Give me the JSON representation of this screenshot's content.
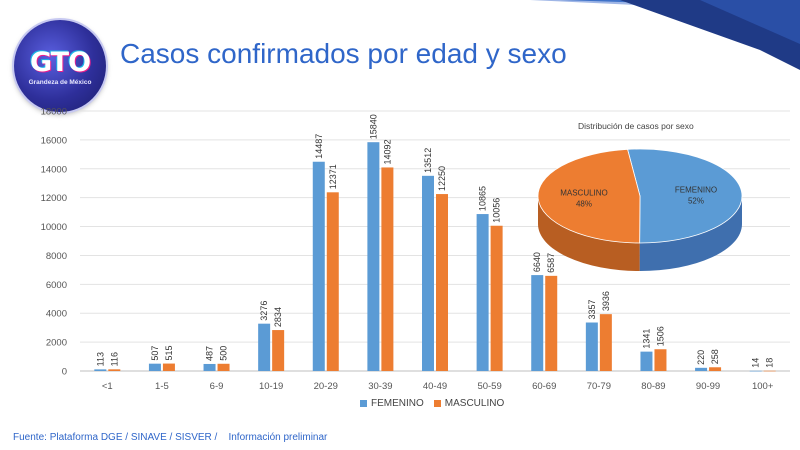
{
  "header": {
    "logo_text": "GTO",
    "logo_tagline": "Grandeza de México",
    "title": "Casos confirmados por edad y sexo"
  },
  "colors": {
    "femenino": "#5b9bd5",
    "masculino": "#ed7d31",
    "title": "#2f66c9",
    "banner_dark": "#1f3a86",
    "banner_mid": "#3f72c8"
  },
  "chart_data": [
    {
      "type": "bar",
      "title": "",
      "xlabel": "",
      "ylabel": "",
      "ylim": [
        0,
        18000
      ],
      "yticks": [
        0,
        2000,
        4000,
        6000,
        8000,
        10000,
        12000,
        14000,
        16000,
        18000
      ],
      "grid": true,
      "legend_position": "bottom",
      "categories": [
        "<1",
        "1-5",
        "6-9",
        "10-19",
        "20-29",
        "30-39",
        "40-49",
        "50-59",
        "60-69",
        "70-79",
        "80-89",
        "90-99",
        "100+"
      ],
      "series": [
        {
          "name": "FEMENINO",
          "values": [
            113,
            507,
            487,
            3276,
            14487,
            15840,
            13512,
            10865,
            6640,
            3357,
            1341,
            220,
            14
          ]
        },
        {
          "name": "MASCULINO",
          "values": [
            116,
            515,
            500,
            2834,
            12371,
            14092,
            12250,
            10056,
            6587,
            3936,
            1506,
            258,
            18
          ]
        }
      ]
    },
    {
      "type": "pie",
      "title": "Distribución de casos por sexo",
      "slices": [
        {
          "label": "FEMENINO",
          "value": 52,
          "value_label": "52%"
        },
        {
          "label": "MASCULINO",
          "value": 48,
          "value_label": "48%"
        }
      ]
    }
  ],
  "footer": {
    "source": "Fuente: Plataforma DGE / SINAVE / SISVER /    Información preliminar"
  }
}
